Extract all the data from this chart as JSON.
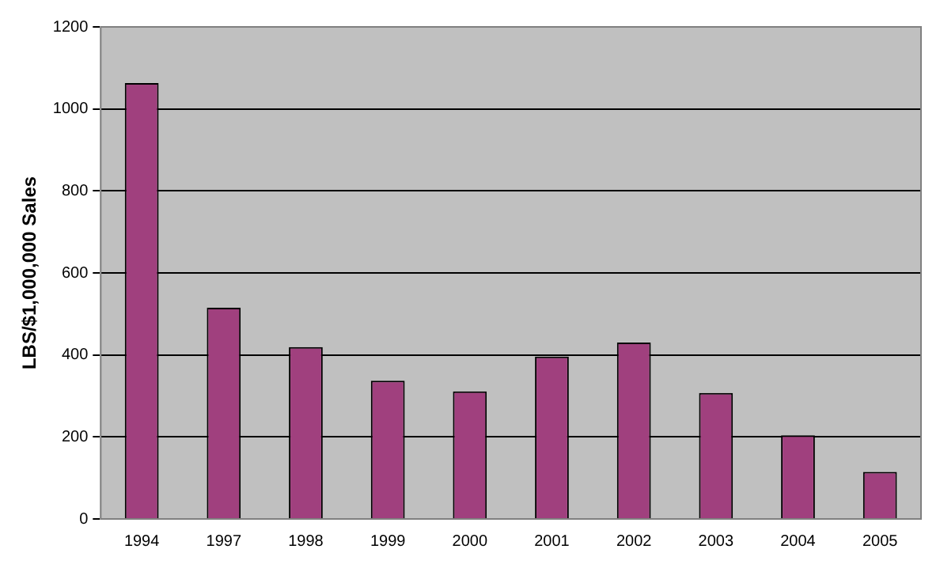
{
  "chart_data": {
    "type": "bar",
    "ylabel": "LBS/$1,000,000 Sales",
    "categories": [
      "1994",
      "1997",
      "1998",
      "1999",
      "2000",
      "2001",
      "2002",
      "2003",
      "2004",
      "2005"
    ],
    "values": [
      1063,
      515,
      419,
      337,
      311,
      396,
      430,
      307,
      204,
      115
    ],
    "color": "#a0407e",
    "ylim": [
      0,
      1200
    ],
    "yticks": [
      0,
      200,
      400,
      600,
      800,
      1000,
      1200
    ],
    "grid": "y",
    "legend": false
  }
}
